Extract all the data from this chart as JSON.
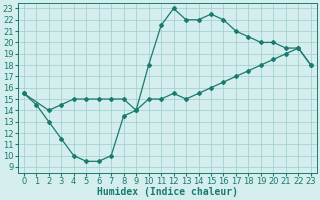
{
  "line1_x": [
    0,
    1,
    2,
    3,
    4,
    5,
    6,
    7,
    8,
    9,
    10,
    11,
    12,
    13,
    14,
    15,
    16,
    17,
    18,
    19,
    20,
    21,
    22,
    23
  ],
  "line1_y": [
    15.5,
    14.5,
    13.0,
    11.5,
    10.0,
    9.5,
    9.5,
    10.0,
    13.5,
    14.0,
    18.0,
    21.5,
    23.0,
    22.0,
    22.0,
    22.5,
    22.0,
    21.0,
    20.5,
    20.0,
    20.0,
    19.5,
    19.5,
    18.0
  ],
  "line2_x": [
    0,
    2,
    3,
    4,
    5,
    6,
    7,
    8,
    9,
    10,
    11,
    12,
    13,
    14,
    15,
    16,
    17,
    18,
    19,
    20,
    21,
    22,
    23
  ],
  "line2_y": [
    15.5,
    14.0,
    14.5,
    15.0,
    15.0,
    15.0,
    15.0,
    15.0,
    14.0,
    15.0,
    15.0,
    15.5,
    15.0,
    15.5,
    16.0,
    16.5,
    17.0,
    17.5,
    18.0,
    18.5,
    19.0,
    19.5,
    18.0
  ],
  "line_color": "#1a7a6e",
  "bg_color": "#d4eeee",
  "grid_color": "#a0cccc",
  "xlabel": "Humidex (Indice chaleur)",
  "xlim": [
    -0.5,
    23.5
  ],
  "ylim": [
    8.5,
    23.5
  ],
  "xticks": [
    0,
    1,
    2,
    3,
    4,
    5,
    6,
    7,
    8,
    9,
    10,
    11,
    12,
    13,
    14,
    15,
    16,
    17,
    18,
    19,
    20,
    21,
    22,
    23
  ],
  "yticks": [
    9,
    10,
    11,
    12,
    13,
    14,
    15,
    16,
    17,
    18,
    19,
    20,
    21,
    22,
    23
  ],
  "font_size": 6,
  "xlabel_fontsize": 7,
  "tick_label_color": "#1a7a6e",
  "marker": "D",
  "markersize": 2.0,
  "linewidth": 0.9
}
